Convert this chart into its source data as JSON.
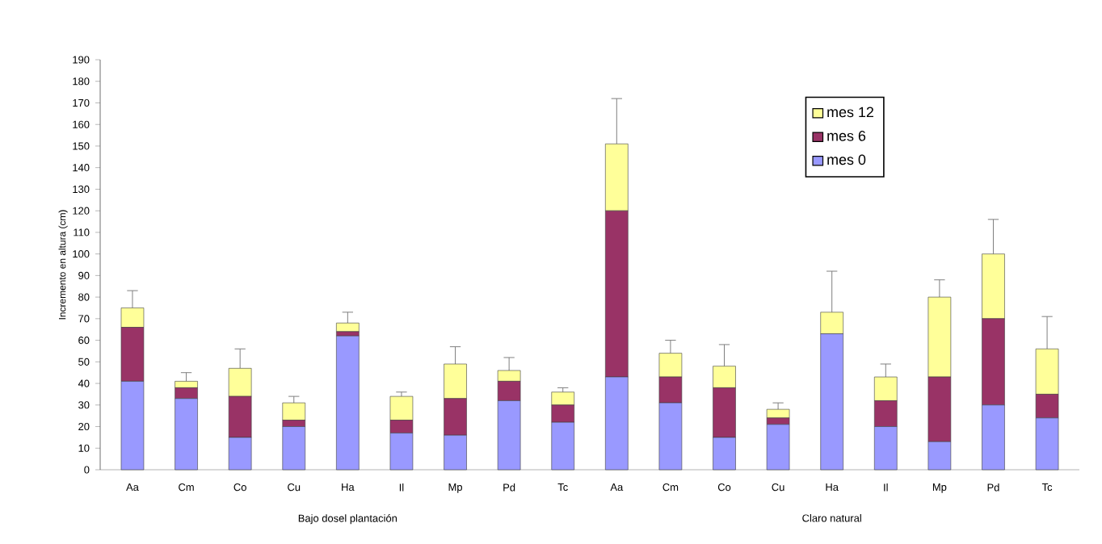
{
  "chart_data": {
    "type": "bar",
    "stacked": true,
    "legend": "top right",
    "ylabel": "Incremento en altura (cm)",
    "categories": [
      "Aa",
      "Cm",
      "Co",
      "Cu",
      "Ha",
      "Il",
      "Mp",
      "Pd",
      "Tc",
      "Aa",
      "Cm",
      "Co",
      "Cu",
      "Ha",
      "Il",
      "Mp",
      "Pd",
      "Tc"
    ],
    "series": [
      {
        "name": "mes 0",
        "color": "#9999ff",
        "values": [
          41,
          33,
          15,
          20,
          62,
          17,
          16,
          32,
          22,
          43,
          31,
          15,
          21,
          63,
          20,
          13,
          30,
          24
        ]
      },
      {
        "name": "mes 6",
        "color": "#993366",
        "values": [
          25,
          5,
          19,
          3,
          2,
          6,
          17,
          9,
          8,
          77,
          12,
          23,
          3,
          0,
          12,
          30,
          40,
          11
        ]
      },
      {
        "name": "mes 12",
        "color": "#ffff99",
        "values": [
          9,
          3,
          13,
          8,
          4,
          11,
          16,
          5,
          6,
          31,
          11,
          10,
          4,
          10,
          11,
          37,
          30,
          21
        ],
        "errors": [
          [
            75,
            83
          ],
          [
            41,
            45
          ],
          [
            47,
            56
          ],
          [
            31,
            34
          ],
          [
            68,
            73
          ],
          [
            34,
            36
          ],
          [
            49,
            57
          ],
          [
            46,
            52
          ],
          [
            36,
            38
          ],
          [
            151,
            172
          ],
          [
            54,
            60
          ],
          [
            48,
            58
          ],
          [
            28,
            31
          ],
          [
            73,
            92
          ],
          [
            43,
            49
          ],
          [
            80,
            88
          ],
          [
            100,
            116
          ],
          [
            56,
            71
          ]
        ]
      }
    ],
    "ylim": [
      0,
      190
    ],
    "yticks": [
      0,
      10,
      20,
      30,
      40,
      50,
      60,
      70,
      80,
      90,
      100,
      110,
      120,
      130,
      140,
      150,
      160,
      170,
      180,
      190
    ],
    "annotations": [
      "Bajo dosel plantación",
      "Claro natural"
    ]
  }
}
